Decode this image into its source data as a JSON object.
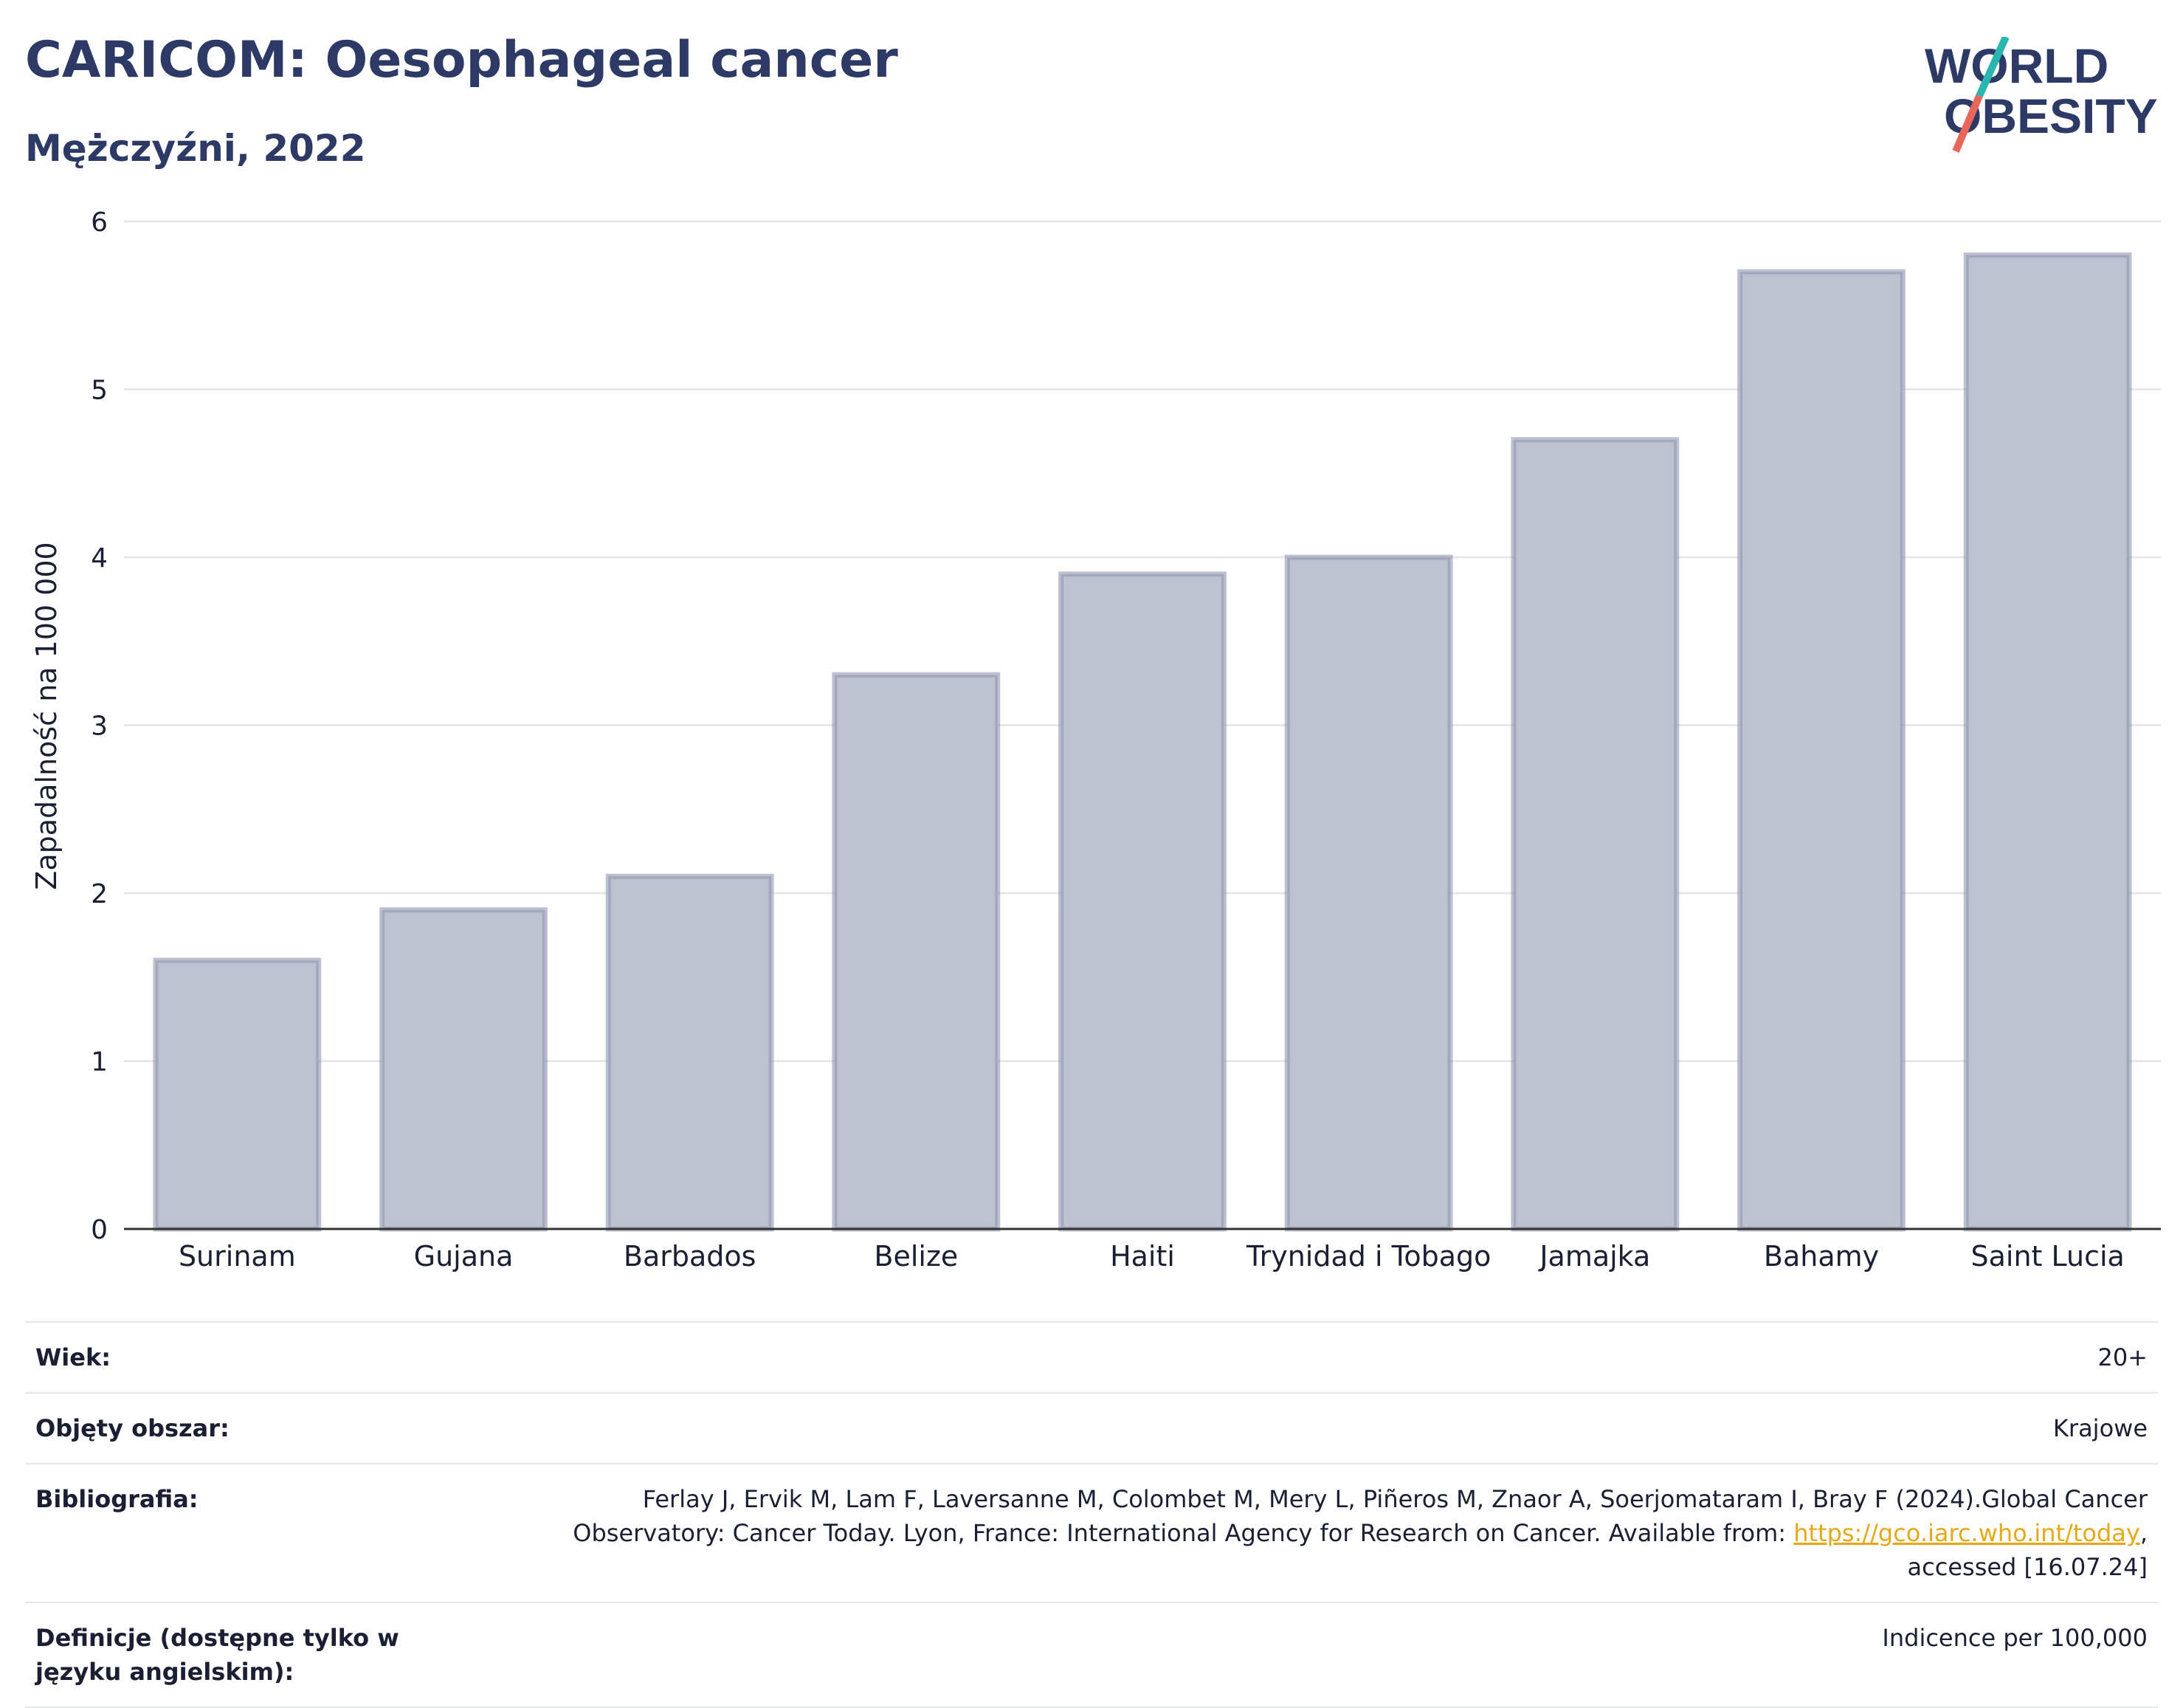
{
  "header": {
    "title": "CARICOM: Oesophageal cancer",
    "subtitle": "Mężczyźni, 2022"
  },
  "logo": {
    "line1": "WORLD",
    "line2": "OBESITY",
    "colors": {
      "text": "#2d3a66",
      "slash_top": "#2bb5b0",
      "slash_bottom": "#e8665a"
    }
  },
  "chart_data": {
    "type": "bar",
    "categories": [
      "Surinam",
      "Gujana",
      "Barbados",
      "Belize",
      "Haiti",
      "Trynidad i Tobago",
      "Jamajka",
      "Bahamy",
      "Saint Lucia"
    ],
    "values": [
      1.6,
      1.9,
      2.1,
      3.3,
      3.9,
      4.0,
      4.7,
      5.7,
      5.8
    ],
    "ylabel": "Zapadalność na 100 000",
    "xlabel": "",
    "ylim": [
      0,
      6
    ],
    "yticks": [
      0,
      1,
      2,
      3,
      4,
      5,
      6
    ],
    "grid": true,
    "colors": {
      "bar_fill": "#bec2cf",
      "bar_stroke": "#8f96b0",
      "grid": "#e6e7ea",
      "axis": "#333333"
    }
  },
  "meta": {
    "rows": [
      {
        "label": "Wiek:",
        "value": "20+"
      },
      {
        "label": "Objęty obszar:",
        "value": "Krajowe"
      },
      {
        "label": "Bibliografia:",
        "value_before": "Ferlay J, Ervik M, Lam F, Laversanne M, Colombet M, Mery L, Piñeros M, Znaor A, Soerjomataram I, Bray F (2024).Global Cancer Observatory: Cancer Today. Lyon, France: International Agency for Research on Cancer. Available from: ",
        "link": "https://gco.iarc.who.int/today",
        "value_after": ", accessed [16.07.24]"
      },
      {
        "label": "Definicje (dostępne tylko w języku angielskim):",
        "value": "Indicence per 100,000"
      }
    ]
  }
}
